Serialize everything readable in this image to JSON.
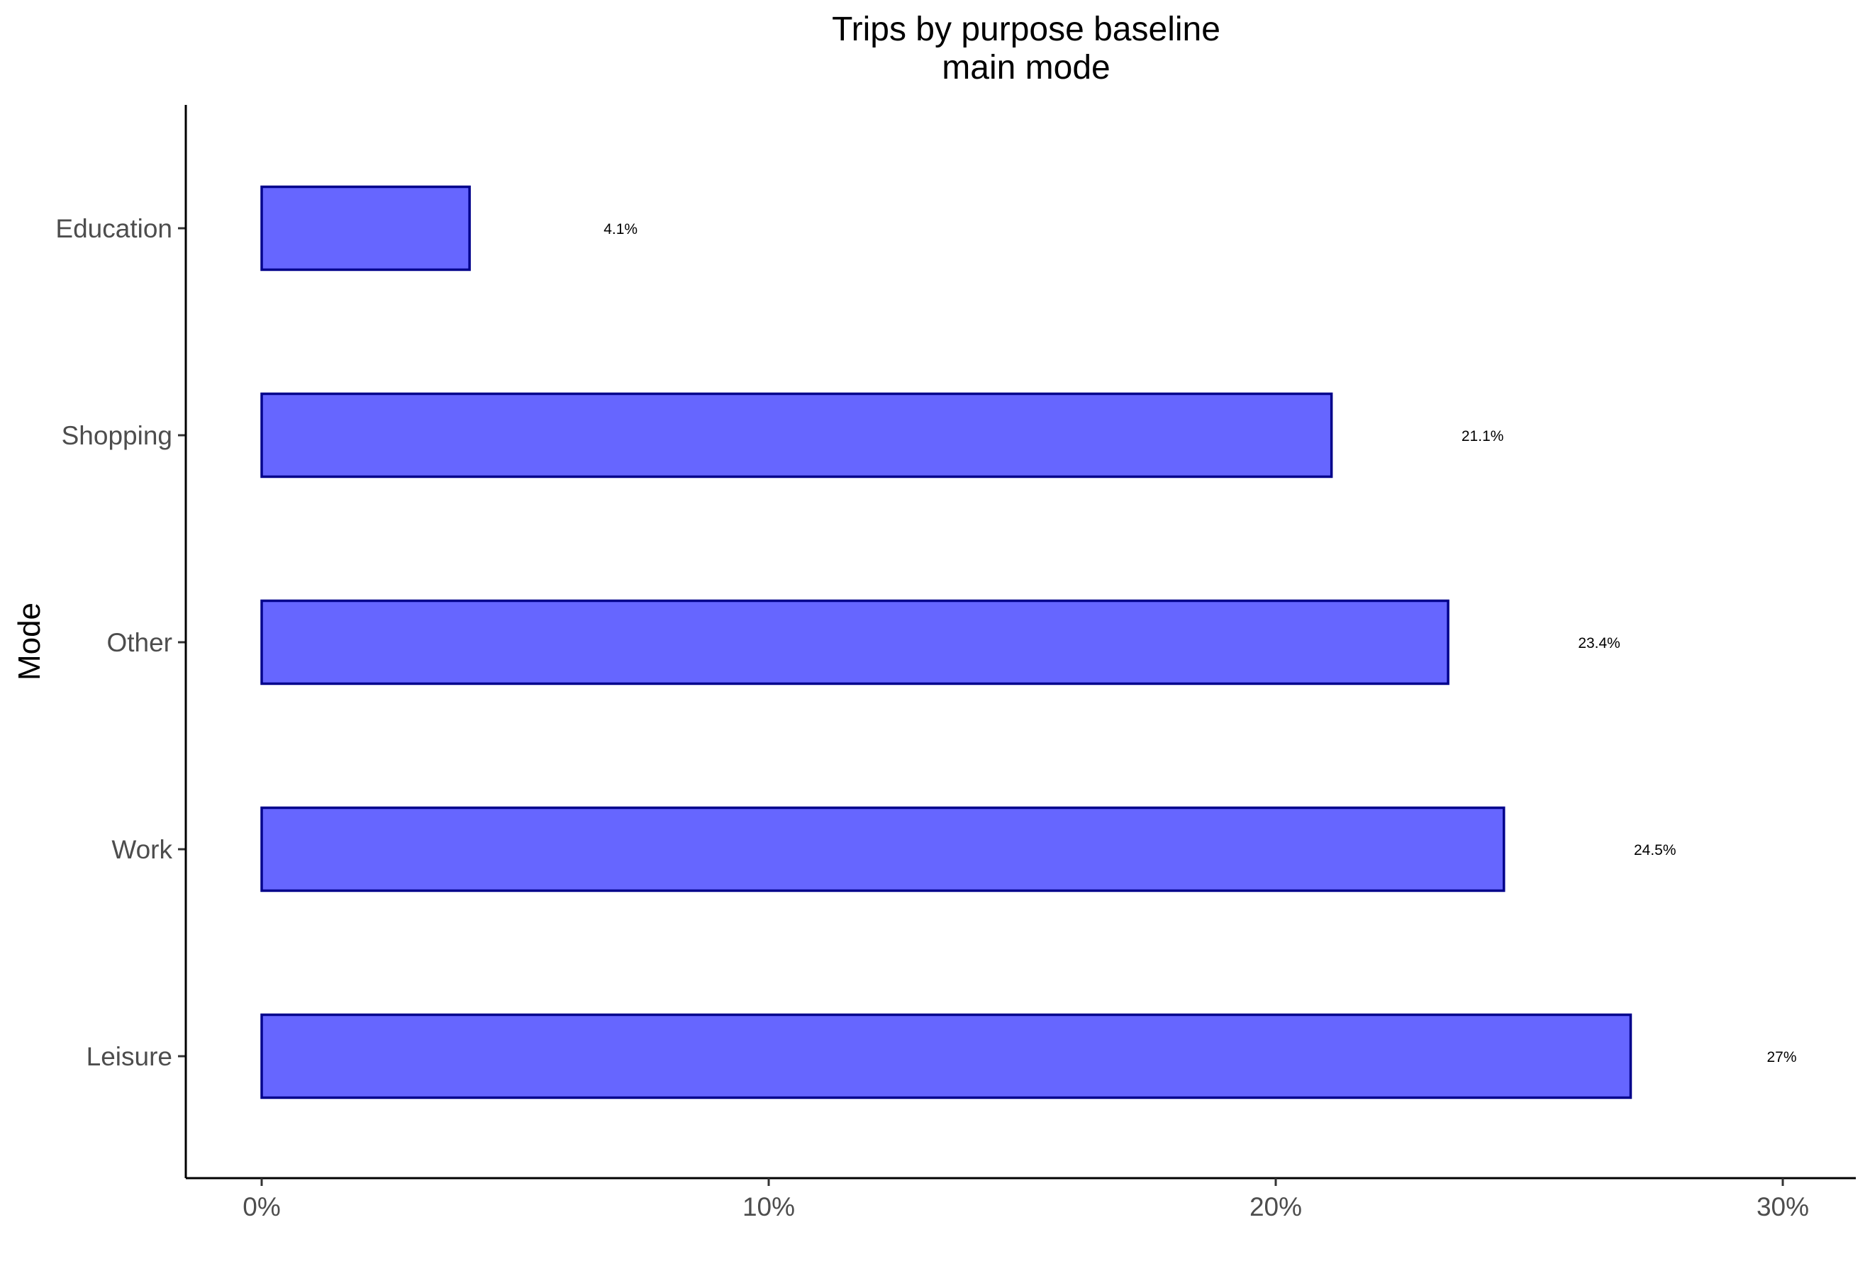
{
  "chart_data": {
    "type": "bar",
    "orientation": "horizontal",
    "title": [
      "Trips by purpose baseline",
      "main mode"
    ],
    "xlabel": "",
    "ylabel": "Mode",
    "categories": [
      "Leisure",
      "Work",
      "Other",
      "Shopping",
      "Education"
    ],
    "values": [
      27.0,
      24.5,
      23.4,
      21.1,
      4.1
    ],
    "data_labels": [
      "27%",
      "24.5%",
      "23.4%",
      "21.1%",
      "4.1%"
    ],
    "xlim": [
      -1.5,
      31.5
    ],
    "xticks": [
      0,
      10,
      20,
      30
    ],
    "xtick_labels": [
      "0%",
      "10%",
      "20%",
      "30%"
    ],
    "grid": false,
    "legend": "none",
    "colors": {
      "bar_fill": "#6666ff",
      "bar_stroke": "#00008b"
    }
  }
}
